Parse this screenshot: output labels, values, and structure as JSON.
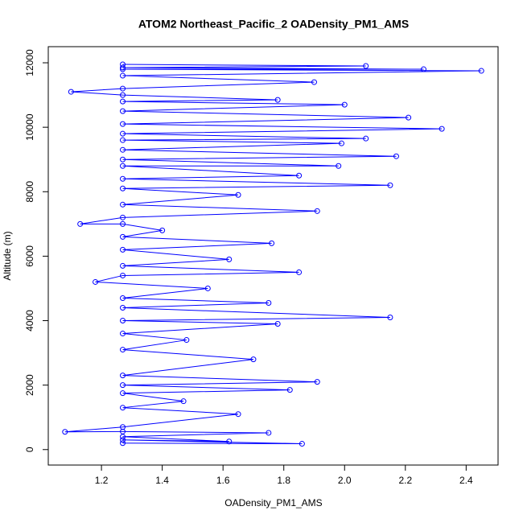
{
  "chart_data": {
    "type": "line",
    "title": "ATOM2 Northeast_Pacific_2 OADensity_PM1_AMS",
    "x_label": "OADensity_PM1_AMS",
    "y_label": "Altitude (m)",
    "color": "#0000ff",
    "x": [
      1.27,
      1.86,
      1.27,
      1.62,
      1.27,
      1.75,
      1.27,
      1.08,
      1.27,
      1.65,
      1.27,
      1.47,
      1.27,
      1.82,
      1.27,
      1.91,
      1.27,
      1.7,
      1.27,
      1.48,
      1.27,
      1.78,
      1.27,
      2.15,
      1.27,
      1.75,
      1.27,
      1.55,
      1.18,
      1.27,
      1.85,
      1.27,
      1.62,
      1.27,
      1.76,
      1.27,
      1.4,
      1.27,
      1.13,
      1.27,
      1.91,
      1.27,
      1.65,
      1.27,
      2.15,
      1.27,
      1.85,
      1.27,
      1.98,
      1.27,
      2.17,
      1.27,
      1.99,
      1.27,
      2.07,
      1.27,
      2.32,
      1.27,
      2.21,
      1.27,
      2.0,
      1.27,
      1.78,
      1.27,
      1.1,
      1.27,
      1.9,
      1.27,
      2.45,
      1.27,
      2.26,
      1.27,
      2.07,
      1.27
    ],
    "values": [
      200,
      180,
      300,
      250,
      400,
      520,
      560,
      550,
      700,
      1100,
      1300,
      1500,
      1750,
      1850,
      2000,
      2100,
      2300,
      2800,
      3100,
      3400,
      3600,
      3900,
      4000,
      4100,
      4400,
      4550,
      4700,
      5000,
      5200,
      5400,
      5500,
      5700,
      5900,
      6200,
      6400,
      6600,
      6800,
      7000,
      7000,
      7200,
      7400,
      7600,
      7900,
      8100,
      8200,
      8400,
      8500,
      8800,
      8800,
      9000,
      9100,
      9300,
      9500,
      9600,
      9650,
      9800,
      9950,
      10100,
      10300,
      10500,
      10700,
      10800,
      10850,
      11000,
      11100,
      11200,
      11400,
      11600,
      11750,
      11800,
      11800,
      11850,
      11900,
      11950
    ],
    "xlim": [
      1.025,
      2.505
    ],
    "ylim": [
      -480,
      12500
    ],
    "xticks": [
      1.2,
      1.4,
      1.6,
      1.8,
      {
        "value": 2,
        "label": "2.0"
      },
      2.2,
      2.4
    ],
    "yticks": [
      0,
      2000,
      4000,
      6000,
      8000,
      10000,
      12000
    ]
  }
}
